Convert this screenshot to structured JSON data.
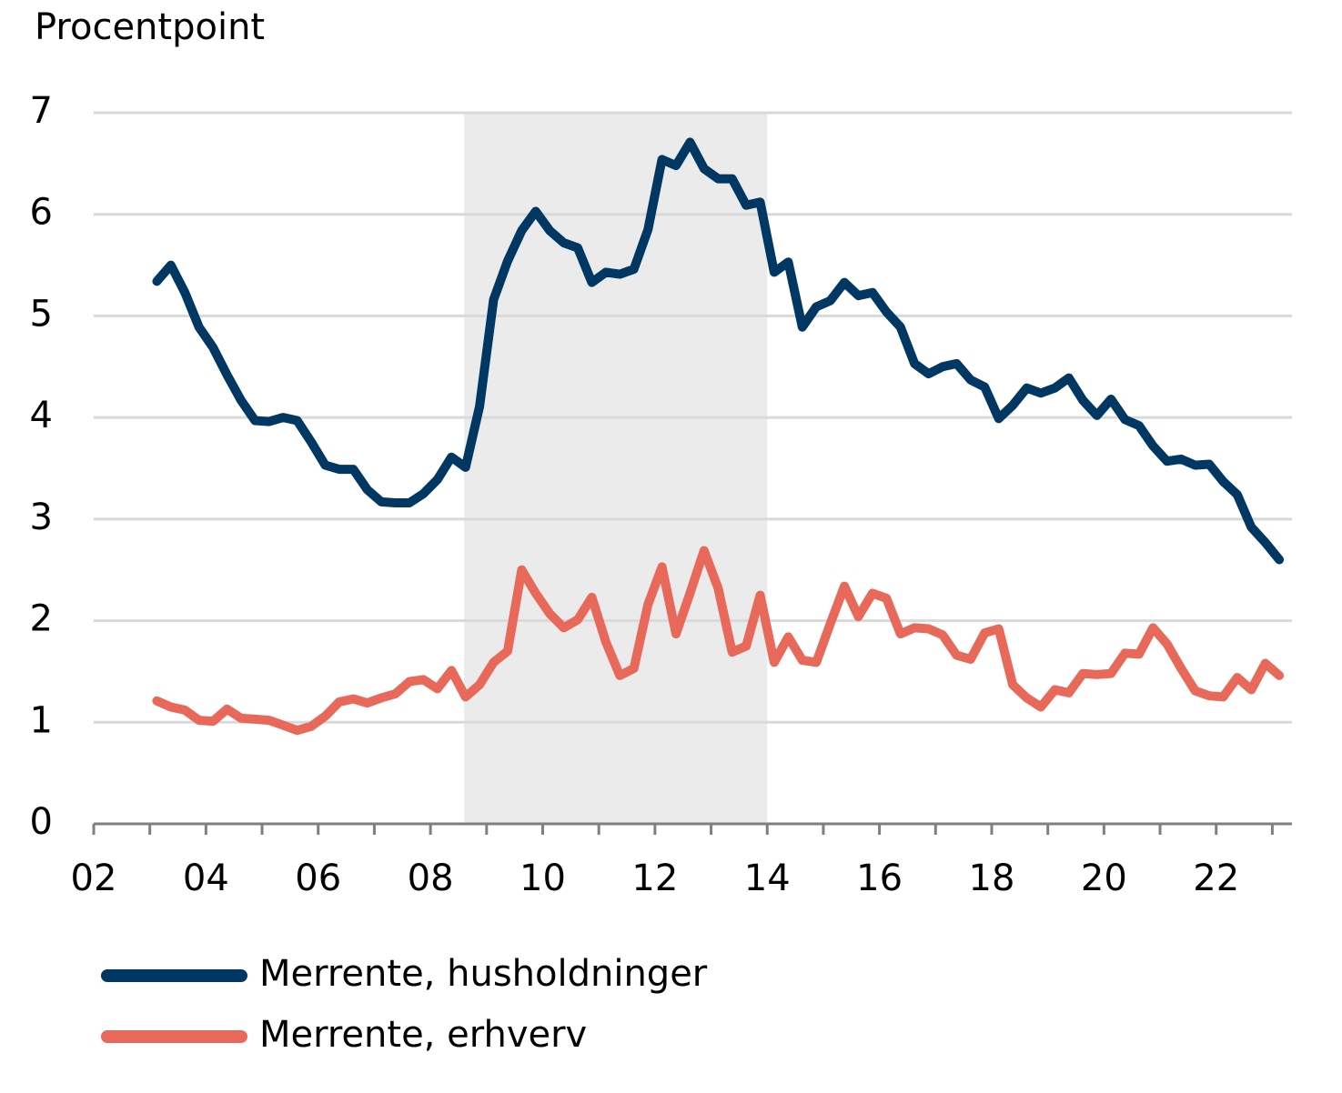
{
  "chart_data": {
    "type": "line",
    "y_axis_label": "Procentpoint",
    "x": [
      2003.125,
      2003.375,
      2003.625,
      2003.875,
      2004.125,
      2004.375,
      2004.625,
      2004.875,
      2005.125,
      2005.375,
      2005.625,
      2005.875,
      2006.125,
      2006.375,
      2006.625,
      2006.875,
      2007.125,
      2007.375,
      2007.625,
      2007.875,
      2008.125,
      2008.375,
      2008.625,
      2008.875,
      2009.125,
      2009.375,
      2009.625,
      2009.875,
      2010.125,
      2010.375,
      2010.625,
      2010.875,
      2011.125,
      2011.375,
      2011.625,
      2011.875,
      2012.125,
      2012.375,
      2012.625,
      2012.875,
      2013.125,
      2013.375,
      2013.625,
      2013.875,
      2014.125,
      2014.375,
      2014.625,
      2014.875,
      2015.125,
      2015.375,
      2015.625,
      2015.875,
      2016.125,
      2016.375,
      2016.625,
      2016.875,
      2017.125,
      2017.375,
      2017.625,
      2017.875,
      2018.125,
      2018.375,
      2018.625,
      2018.875,
      2019.125,
      2019.375,
      2019.625,
      2019.875,
      2020.125,
      2020.375,
      2020.625,
      2020.875,
      2021.125,
      2021.375,
      2021.625,
      2021.875,
      2022.125,
      2022.375,
      2022.625,
      2022.875,
      2023.125
    ],
    "series": [
      {
        "name": "Merrente, husholdninger",
        "color": "#003863",
        "values": [
          5.34,
          5.5,
          5.23,
          4.89,
          4.69,
          4.42,
          4.17,
          3.97,
          3.96,
          4.0,
          3.97,
          3.76,
          3.53,
          3.49,
          3.49,
          3.29,
          3.17,
          3.16,
          3.16,
          3.25,
          3.39,
          3.61,
          3.51,
          4.11,
          5.16,
          5.54,
          5.84,
          6.03,
          5.84,
          5.72,
          5.67,
          5.33,
          5.43,
          5.41,
          5.46,
          5.85,
          6.54,
          6.48,
          6.71,
          6.45,
          6.35,
          6.35,
          6.09,
          6.12,
          5.43,
          5.53,
          4.89,
          5.09,
          5.15,
          5.33,
          5.2,
          5.23,
          5.04,
          4.89,
          4.53,
          4.43,
          4.5,
          4.53,
          4.37,
          4.3,
          3.99,
          4.12,
          4.29,
          4.24,
          4.29,
          4.39,
          4.17,
          4.02,
          4.18,
          3.98,
          3.92,
          3.72,
          3.57,
          3.59,
          3.53,
          3.54,
          3.37,
          3.24,
          2.92,
          2.77,
          2.6
        ]
      },
      {
        "name": "Merrente, erhverv",
        "color": "#e8685a",
        "values": [
          1.21,
          1.15,
          1.12,
          1.02,
          1.01,
          1.13,
          1.04,
          1.03,
          1.02,
          0.97,
          0.92,
          0.96,
          1.06,
          1.2,
          1.23,
          1.19,
          1.24,
          1.28,
          1.4,
          1.42,
          1.33,
          1.51,
          1.25,
          1.37,
          1.59,
          1.7,
          2.5,
          2.27,
          2.07,
          1.93,
          2.01,
          2.23,
          1.79,
          1.46,
          1.53,
          2.16,
          2.53,
          1.87,
          2.27,
          2.69,
          2.32,
          1.69,
          1.75,
          2.25,
          1.59,
          1.84,
          1.61,
          1.59,
          1.97,
          2.34,
          2.04,
          2.27,
          2.22,
          1.87,
          1.93,
          1.92,
          1.86,
          1.66,
          1.62,
          1.88,
          1.92,
          1.37,
          1.24,
          1.15,
          1.32,
          1.29,
          1.48,
          1.47,
          1.48,
          1.68,
          1.67,
          1.93,
          1.77,
          1.53,
          1.31,
          1.26,
          1.25,
          1.44,
          1.32,
          1.58,
          1.46
        ]
      }
    ],
    "xlim": [
      2002,
      2023.35
    ],
    "ylim": [
      0,
      7
    ],
    "xticks": [
      {
        "value": 2002,
        "label": "02"
      },
      {
        "value": 2004,
        "label": "04"
      },
      {
        "value": 2006,
        "label": "06"
      },
      {
        "value": 2008,
        "label": "08"
      },
      {
        "value": 2010,
        "label": "10"
      },
      {
        "value": 2012,
        "label": "12"
      },
      {
        "value": 2014,
        "label": "14"
      },
      {
        "value": 2016,
        "label": "16"
      },
      {
        "value": 2018,
        "label": "18"
      },
      {
        "value": 2020,
        "label": "20"
      },
      {
        "value": 2022,
        "label": "22"
      }
    ],
    "xminorticks": [
      2003,
      2005,
      2007,
      2009,
      2011,
      2013,
      2015,
      2017,
      2019,
      2021,
      2023
    ],
    "yticks": [
      0,
      1,
      2,
      3,
      4,
      5,
      6,
      7
    ],
    "shaded_x": [
      2008.6,
      2014.0
    ],
    "shade_color": "#ebebeb",
    "grid": true,
    "legend": "bottom"
  }
}
